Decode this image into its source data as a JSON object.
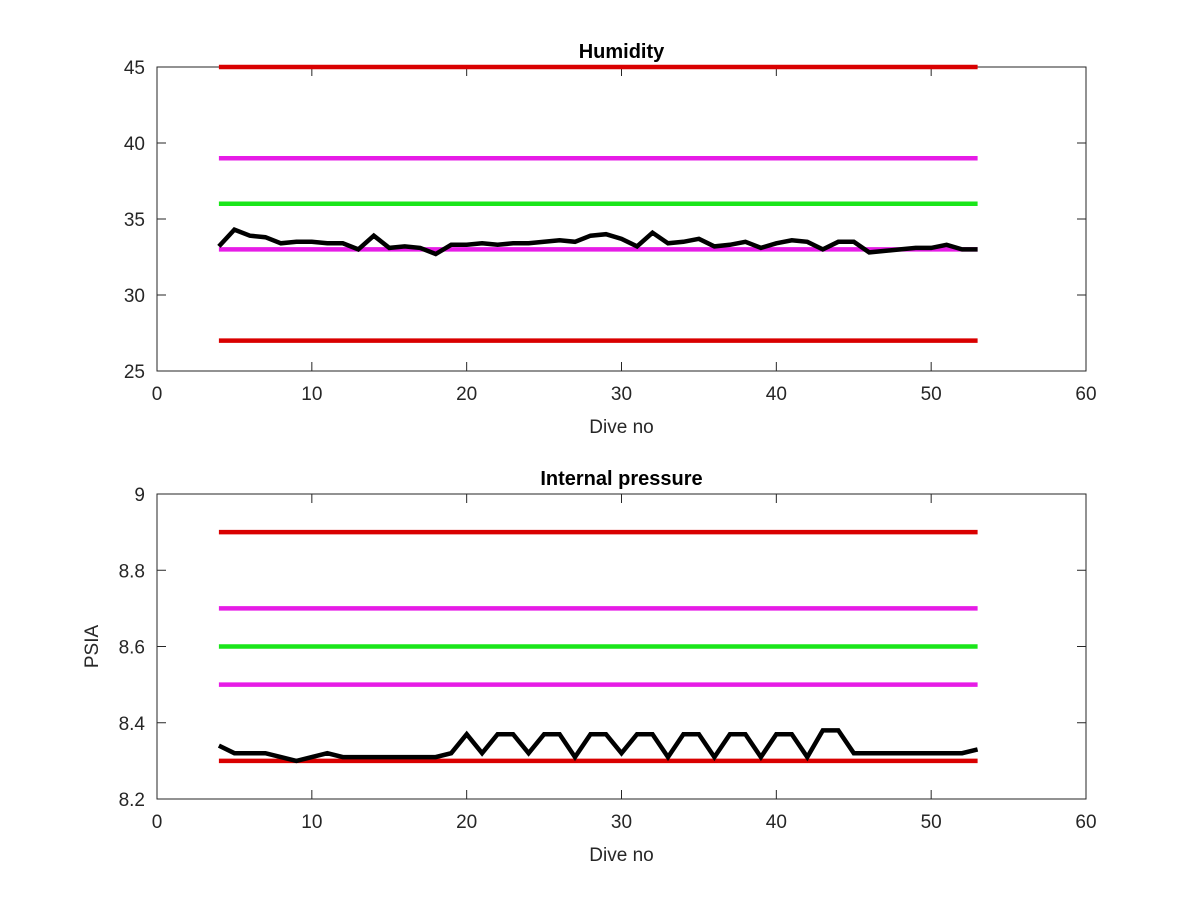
{
  "chart_data": [
    {
      "type": "line",
      "title": "Humidity",
      "xlabel": "Dive no",
      "ylabel": "",
      "xlim": [
        0,
        60
      ],
      "ylim": [
        25,
        45
      ],
      "xticks": [
        "0",
        "10",
        "20",
        "30",
        "40",
        "50",
        "60"
      ],
      "yticks": [
        "25",
        "30",
        "35",
        "40",
        "45"
      ],
      "grid": false,
      "series": [
        {
          "color": "#d90000",
          "x": [
            4,
            53
          ],
          "y": [
            45,
            45
          ]
        },
        {
          "color": "#e61ce6",
          "x": [
            4,
            53
          ],
          "y": [
            39,
            39
          ]
        },
        {
          "color": "#1ae61a",
          "x": [
            4,
            53
          ],
          "y": [
            36,
            36
          ]
        },
        {
          "color": "#e61ce6",
          "x": [
            4,
            53
          ],
          "y": [
            33,
            33
          ]
        },
        {
          "color": "#d90000",
          "x": [
            4,
            53
          ],
          "y": [
            27,
            27
          ]
        },
        {
          "color": "#000000",
          "x": [
            4,
            5,
            6,
            7,
            8,
            9,
            10,
            11,
            12,
            13,
            14,
            15,
            16,
            17,
            18,
            19,
            20,
            21,
            22,
            23,
            24,
            25,
            26,
            27,
            28,
            29,
            30,
            31,
            32,
            33,
            34,
            35,
            36,
            37,
            38,
            39,
            40,
            41,
            42,
            43,
            44,
            45,
            46,
            47,
            48,
            49,
            50,
            51,
            52,
            53
          ],
          "y": [
            33.2,
            34.3,
            33.9,
            33.8,
            33.4,
            33.5,
            33.5,
            33.4,
            33.4,
            33.0,
            33.9,
            33.1,
            33.2,
            33.1,
            32.7,
            33.3,
            33.3,
            33.4,
            33.3,
            33.4,
            33.4,
            33.5,
            33.6,
            33.5,
            33.9,
            34.0,
            33.7,
            33.2,
            34.1,
            33.4,
            33.5,
            33.7,
            33.2,
            33.3,
            33.5,
            33.1,
            33.4,
            33.6,
            33.5,
            33.0,
            33.5,
            33.5,
            32.8,
            32.9,
            33.0,
            33.1,
            33.1,
            33.3,
            33.0,
            33.0
          ]
        }
      ]
    },
    {
      "type": "line",
      "title": "Internal pressure",
      "xlabel": "Dive no",
      "ylabel": "PSIA",
      "xlim": [
        0,
        60
      ],
      "ylim": [
        8.2,
        9.0
      ],
      "xticks": [
        "0",
        "10",
        "20",
        "30",
        "40",
        "50",
        "60"
      ],
      "yticks": [
        "8.2",
        "8.4",
        "8.6",
        "8.8",
        "9"
      ],
      "grid": false,
      "series": [
        {
          "color": "#d90000",
          "x": [
            4,
            53
          ],
          "y": [
            8.9,
            8.9
          ]
        },
        {
          "color": "#e61ce6",
          "x": [
            4,
            53
          ],
          "y": [
            8.7,
            8.7
          ]
        },
        {
          "color": "#1ae61a",
          "x": [
            4,
            53
          ],
          "y": [
            8.6,
            8.6
          ]
        },
        {
          "color": "#e61ce6",
          "x": [
            4,
            53
          ],
          "y": [
            8.5,
            8.5
          ]
        },
        {
          "color": "#d90000",
          "x": [
            4,
            53
          ],
          "y": [
            8.3,
            8.3
          ]
        },
        {
          "color": "#000000",
          "x": [
            4,
            5,
            6,
            7,
            8,
            9,
            10,
            11,
            12,
            13,
            14,
            15,
            16,
            17,
            18,
            19,
            20,
            21,
            22,
            23,
            24,
            25,
            26,
            27,
            28,
            29,
            30,
            31,
            32,
            33,
            34,
            35,
            36,
            37,
            38,
            39,
            40,
            41,
            42,
            43,
            44,
            45,
            46,
            47,
            48,
            49,
            50,
            51,
            52,
            53
          ],
          "y": [
            8.34,
            8.32,
            8.32,
            8.32,
            8.31,
            8.3,
            8.31,
            8.32,
            8.31,
            8.31,
            8.31,
            8.31,
            8.31,
            8.31,
            8.31,
            8.32,
            8.37,
            8.32,
            8.37,
            8.37,
            8.32,
            8.37,
            8.37,
            8.31,
            8.37,
            8.37,
            8.32,
            8.37,
            8.37,
            8.31,
            8.37,
            8.37,
            8.31,
            8.37,
            8.37,
            8.31,
            8.37,
            8.37,
            8.31,
            8.38,
            8.38,
            8.32,
            8.32,
            8.32,
            8.32,
            8.32,
            8.32,
            8.32,
            8.32,
            8.33
          ]
        }
      ]
    }
  ]
}
